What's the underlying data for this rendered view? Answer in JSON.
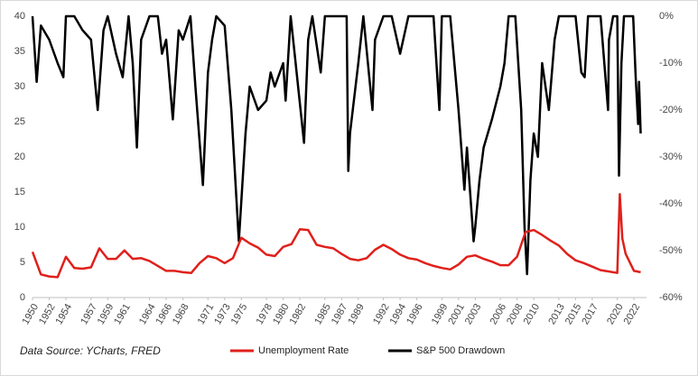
{
  "chart_data": {
    "type": "line",
    "annotation": "Data Source: YCharts, FRED",
    "xlim": [
      1950,
      2023.5
    ],
    "xticks": [
      1950,
      1952,
      1954,
      1957,
      1959,
      1961,
      1964,
      1966,
      1968,
      1971,
      1973,
      1975,
      1978,
      1980,
      1982,
      1985,
      1987,
      1989,
      1992,
      1994,
      1996,
      1999,
      2001,
      2003,
      2006,
      2008,
      2010,
      2013,
      2015,
      2017,
      2020,
      2022
    ],
    "ylim": [
      0,
      40
    ],
    "yticks": [
      0,
      5,
      10,
      15,
      20,
      25,
      30,
      35,
      40
    ],
    "y2lim": [
      -60,
      0
    ],
    "y2ticks": [
      {
        "value": 0,
        "label": "0%"
      },
      {
        "value": -10,
        "label": "-10%"
      },
      {
        "value": -20,
        "label": "-20%"
      },
      {
        "value": -30,
        "label": "-30%"
      },
      {
        "value": -40,
        "label": "-40%"
      },
      {
        "value": -50,
        "label": "-50%"
      },
      {
        "value": -60,
        "label": "-60%"
      }
    ],
    "legend": "bottom",
    "series": [
      {
        "name": "Unemployment Rate",
        "color": "#e0201b",
        "x": [
          1950,
          1951,
          1952,
          1953,
          1954,
          1955,
          1956,
          1957,
          1958,
          1959,
          1960,
          1961,
          1962,
          1963,
          1964,
          1965,
          1966,
          1967,
          1968,
          1969,
          1970,
          1971,
          1972,
          1973,
          1974,
          1975,
          1976,
          1977,
          1978,
          1979,
          1980,
          1981,
          1982,
          1983,
          1984,
          1985,
          1986,
          1987,
          1988,
          1989,
          1990,
          1991,
          1992,
          1993,
          1994,
          1995,
          1996,
          1997,
          1998,
          1999,
          2000,
          2001,
          2002,
          2003,
          2004,
          2005,
          2006,
          2007,
          2008,
          2009,
          2010,
          2011,
          2012,
          2013,
          2014,
          2015,
          2016,
          2017,
          2018,
          2019,
          2020,
          2020.3,
          2020.6,
          2021,
          2022,
          2022.8
        ],
        "values": [
          6.5,
          3.3,
          3.0,
          2.9,
          5.8,
          4.2,
          4.1,
          4.3,
          7.0,
          5.5,
          5.5,
          6.7,
          5.5,
          5.6,
          5.2,
          4.5,
          3.8,
          3.8,
          3.6,
          3.5,
          4.9,
          5.9,
          5.6,
          4.9,
          5.6,
          8.5,
          7.7,
          7.1,
          6.1,
          5.9,
          7.2,
          7.6,
          9.7,
          9.6,
          7.5,
          7.2,
          7.0,
          6.2,
          5.5,
          5.3,
          5.6,
          6.8,
          7.5,
          6.9,
          6.1,
          5.6,
          5.4,
          4.9,
          4.5,
          4.2,
          4.0,
          4.7,
          5.8,
          6.0,
          5.5,
          5.1,
          4.6,
          4.6,
          5.8,
          9.3,
          9.6,
          8.9,
          8.1,
          7.4,
          6.2,
          5.3,
          4.9,
          4.4,
          3.9,
          3.7,
          3.5,
          14.7,
          8.4,
          6.2,
          3.8,
          3.6
        ]
      },
      {
        "name": "S&P 500 Drawdown",
        "color": "#000000",
        "axis": "y2",
        "x": [
          1950,
          1950.5,
          1951,
          1952,
          1953,
          1953.7,
          1954,
          1955,
          1956,
          1957,
          1957.8,
          1958.5,
          1959,
          1960,
          1960.8,
          1961.5,
          1962,
          1962.5,
          1963,
          1964,
          1965,
          1965.5,
          1966,
          1966.8,
          1967.5,
          1968,
          1968.9,
          1969.5,
          1970.4,
          1971,
          1971.5,
          1972,
          1973,
          1973.8,
          1974.7,
          1975.5,
          1976,
          1977,
          1978,
          1978.5,
          1979,
          1980,
          1980.3,
          1980.9,
          1981.5,
          1982.5,
          1983,
          1983.5,
          1984.5,
          1985,
          1986,
          1987,
          1987.6,
          1987.8,
          1988,
          1989,
          1989.6,
          1990.7,
          1991,
          1992,
          1993,
          1994,
          1995,
          1996,
          1997,
          1998,
          1998.7,
          1999,
          2000,
          2001,
          2001.7,
          2002,
          2002.8,
          2003,
          2003.5,
          2004,
          2005,
          2006,
          2006.5,
          2007,
          2007.8,
          2008.5,
          2008.9,
          2009.2,
          2009.6,
          2010,
          2010.5,
          2011,
          2011.8,
          2012.5,
          2013,
          2014,
          2015,
          2015.7,
          2016.1,
          2016.5,
          2017,
          2018,
          2018.9,
          2019,
          2019.5,
          2020,
          2020.2,
          2020.5,
          2020.8,
          2021,
          2021.9,
          2022.2,
          2022.5,
          2022.6,
          2022.8
        ],
        "values": [
          0,
          -14,
          -2,
          -5,
          -10,
          -13,
          0,
          0,
          -3,
          -5,
          -20,
          -3,
          0,
          -8,
          -13,
          0,
          -10,
          -28,
          -5,
          0,
          0,
          -8,
          -5,
          -22,
          -3,
          -5,
          0,
          -15,
          -36,
          -12,
          -5,
          0,
          -2,
          -20,
          -48,
          -25,
          -15,
          -20,
          -18,
          -12,
          -15,
          -10,
          -18,
          0,
          -10,
          -27,
          -5,
          0,
          -12,
          0,
          0,
          0,
          0,
          -33,
          -25,
          -10,
          0,
          -20,
          -5,
          0,
          0,
          -8,
          0,
          0,
          0,
          0,
          -20,
          0,
          0,
          -20,
          -37,
          -28,
          -48,
          -45,
          -35,
          -28,
          -22,
          -15,
          -10,
          0,
          0,
          -20,
          -45,
          -55,
          -35,
          -25,
          -30,
          -10,
          -20,
          -5,
          0,
          0,
          0,
          -12,
          -13,
          0,
          0,
          0,
          -20,
          -5,
          0,
          0,
          -34,
          -10,
          0,
          0,
          0,
          -13,
          -23,
          -14,
          -25
        ]
      }
    ]
  }
}
